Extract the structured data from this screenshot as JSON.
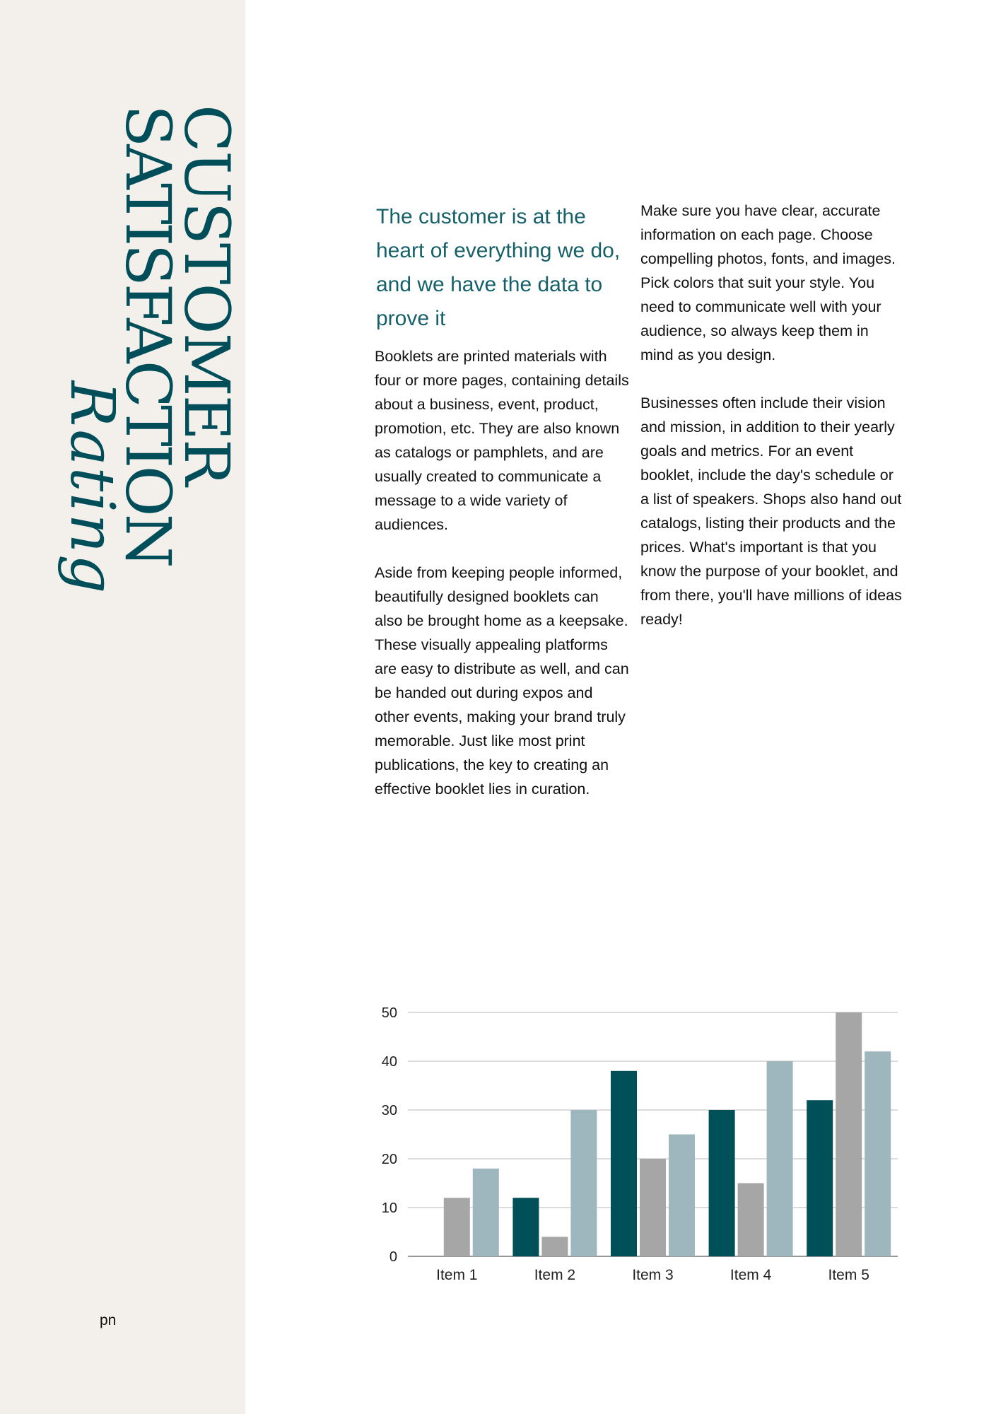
{
  "sidebar": {
    "title_line1": "CUSTOMER",
    "title_line2": "SATISFACTION",
    "script_word": "Rating",
    "page_number": "pn"
  },
  "content": {
    "headline": "The customer is at the heart of everything we do, and we have the data to prove it",
    "left_paragraphs": [
      "Booklets are printed materials with four or more pages, containing details about a business, event, product, promotion, etc. They are also known as catalogs or pamphlets, and are usually created to communicate a message to a wide variety of audiences.",
      "Aside from keeping people informed, beautifully designed booklets can also be brought home as a keepsake. These visually appealing platforms are easy to distribute as well, and can be handed out during expos and other events, making your brand truly memorable. Just like most print publications, the key to creating an effective booklet lies in curation."
    ],
    "right_paragraphs": [
      "Make sure you have clear, accurate information on each page. Choose compelling photos, fonts, and images. Pick colors that suit your style. You need to communicate well with your audience, so always keep them in mind as you design.",
      "Businesses often include their vision and mission, in addition to their yearly goals and metrics. For an event booklet, include the day's schedule or a list of speakers. Shops also hand out catalogs, listing their products and the prices. What's important is that you know the purpose of your booklet, and from there, you'll have millions of ideas ready!"
    ]
  },
  "chart_data": {
    "type": "bar",
    "categories": [
      "Item 1",
      "Item 2",
      "Item 3",
      "Item 4",
      "Item 5"
    ],
    "series": [
      {
        "values": [
          0,
          12,
          38,
          30,
          32
        ],
        "color": "#00505a"
      },
      {
        "values": [
          12,
          4,
          20,
          15,
          50
        ],
        "color": "#a6a6a6"
      },
      {
        "values": [
          18,
          30,
          25,
          40,
          42
        ],
        "color": "#9eb7be"
      }
    ],
    "yticks": [
      0,
      10,
      20,
      30,
      40,
      50
    ],
    "ylim": [
      0,
      50
    ],
    "grid": true,
    "legend": "none"
  },
  "colors": {
    "accent": "#004e59",
    "sidebar_bg": "#f3f0eb"
  }
}
